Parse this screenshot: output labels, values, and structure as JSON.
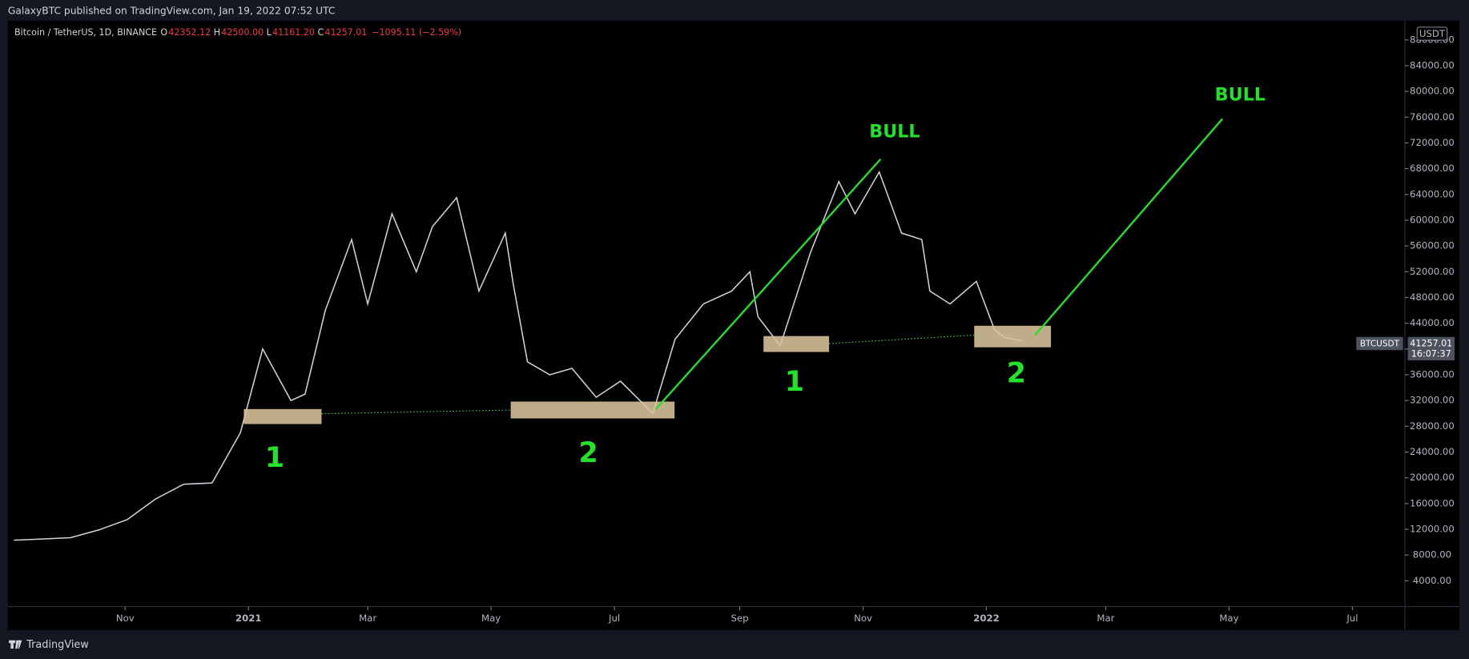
{
  "header": {
    "published": "GalaxyBTC published on TradingView.com, Jan 19, 2022 07:52 UTC",
    "footer": "TradingView"
  },
  "legend_ohlc": {
    "items": [
      {
        "label": "O",
        "value": "42352.12"
      },
      {
        "label": "H",
        "value": "42500.00"
      },
      {
        "label": "L",
        "value": "41161.20"
      },
      {
        "label": "C",
        "value": "41257.01"
      }
    ],
    "change": "−1095.11 (−2.59%)"
  },
  "price_scale": {
    "currency": "USDT",
    "symbol_tag": "BTCUSDT",
    "last_price": "41257.01",
    "countdown": "16:07:37"
  },
  "annotations": {
    "bull_1": "BULL",
    "bull_2": "BULL",
    "wave_1a": "1",
    "wave_2a": "2",
    "wave_1b": "1",
    "wave_2b": "2"
  },
  "chart_data": {
    "type": "line",
    "x": [
      "2020-09-07",
      "2020-09-21",
      "2020-10-05",
      "2020-10-19",
      "2020-11-02",
      "2020-11-16",
      "2020-11-30",
      "2020-12-14",
      "2020-12-28",
      "2021-01-08",
      "2021-01-22",
      "2021-01-29",
      "2021-02-08",
      "2021-02-21",
      "2021-03-01",
      "2021-03-13",
      "2021-03-25",
      "2021-04-02",
      "2021-04-14",
      "2021-04-25",
      "2021-05-08",
      "2021-05-12",
      "2021-05-19",
      "2021-05-30",
      "2021-06-10",
      "2021-06-22",
      "2021-07-04",
      "2021-07-20",
      "2021-07-31",
      "2021-08-14",
      "2021-08-28",
      "2021-09-06",
      "2021-09-10",
      "2021-09-21",
      "2021-10-06",
      "2021-10-20",
      "2021-10-28",
      "2021-11-09",
      "2021-11-20",
      "2021-11-30",
      "2021-12-04",
      "2021-12-14",
      "2021-12-27",
      "2022-01-05",
      "2022-01-10",
      "2022-01-19"
    ],
    "series": [
      {
        "name": "Bitcoin / TetherUS, 1D, BINANCE",
        "color": "#d1d4dc",
        "values": [
          10300,
          10500,
          10700,
          11900,
          13500,
          16700,
          19000,
          19200,
          27000,
          40000,
          32000,
          33000,
          46000,
          57000,
          47000,
          61000,
          52000,
          59000,
          63500,
          49000,
          58000,
          50000,
          38000,
          36000,
          37000,
          32500,
          35000,
          30000,
          41500,
          47000,
          49000,
          52000,
          45000,
          40500,
          55000,
          66000,
          61000,
          67500,
          58000,
          57000,
          49000,
          47000,
          50500,
          43000,
          41800,
          41257
        ]
      }
    ],
    "xlim": [
      "2020-09-04",
      "2022-07-27"
    ],
    "xticks": [
      {
        "value": "2020-11-01",
        "label": "Nov"
      },
      {
        "value": "2021-01-01",
        "label": "2021"
      },
      {
        "value": "2021-03-01",
        "label": "Mar"
      },
      {
        "value": "2021-05-01",
        "label": "May"
      },
      {
        "value": "2021-07-01",
        "label": "Jul"
      },
      {
        "value": "2021-09-01",
        "label": "Sep"
      },
      {
        "value": "2021-11-01",
        "label": "Nov"
      },
      {
        "value": "2022-01-01",
        "label": "2022"
      },
      {
        "value": "2022-03-01",
        "label": "Mar"
      },
      {
        "value": "2022-05-01",
        "label": "May"
      },
      {
        "value": "2022-07-01",
        "label": "Jul"
      }
    ],
    "ylim": [
      0,
      91000
    ],
    "yticks": [
      {
        "value": 4000,
        "label": "4000.00"
      },
      {
        "value": 8000,
        "label": "8000.00"
      },
      {
        "value": 12000,
        "label": "12000.00"
      },
      {
        "value": 16000,
        "label": "16000.00"
      },
      {
        "value": 20000,
        "label": "20000.00"
      },
      {
        "value": 24000,
        "label": "24000.00"
      },
      {
        "value": 28000,
        "label": "28000.00"
      },
      {
        "value": 32000,
        "label": "32000.00"
      },
      {
        "value": 36000,
        "label": "36000.00"
      },
      {
        "value": 40000,
        "label": "40000.00"
      },
      {
        "value": 44000,
        "label": "44000.00"
      },
      {
        "value": 48000,
        "label": "48000.00"
      },
      {
        "value": 52000,
        "label": "52000.00"
      },
      {
        "value": 56000,
        "label": "56000.00"
      },
      {
        "value": 60000,
        "label": "60000.00"
      },
      {
        "value": 64000,
        "label": "64000.00"
      },
      {
        "value": 68000,
        "label": "68000.00"
      },
      {
        "value": 72000,
        "label": "72000.00"
      },
      {
        "value": 76000,
        "label": "76000.00"
      },
      {
        "value": 80000,
        "label": "80000.00"
      },
      {
        "value": 84000,
        "label": "84000.00"
      },
      {
        "value": 88000,
        "label": "88000.00"
      }
    ],
    "grid": false
  }
}
